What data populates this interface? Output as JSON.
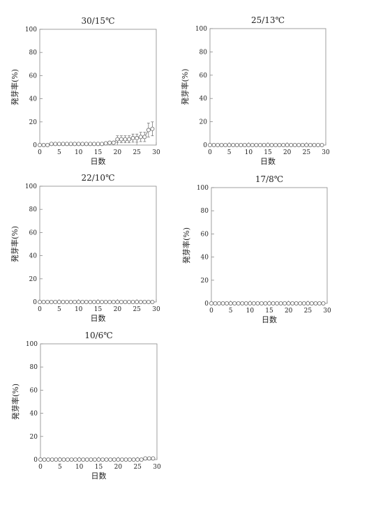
{
  "chart_data": [
    {
      "type": "scatter",
      "title": "30/15℃",
      "xlabel": "日数",
      "ylabel": "発芽率(%)",
      "xlim": [
        0,
        30
      ],
      "ylim": [
        0,
        100
      ],
      "xticks": [
        0,
        5,
        10,
        15,
        20,
        25,
        30
      ],
      "yticks": [
        0,
        20,
        40,
        60,
        80,
        100
      ],
      "x": [
        0,
        1,
        2,
        3,
        4,
        5,
        6,
        7,
        8,
        9,
        10,
        11,
        12,
        13,
        14,
        15,
        16,
        17,
        18,
        19,
        20,
        21,
        22,
        23,
        24,
        25,
        26,
        27,
        28,
        29
      ],
      "series": [
        {
          "values": [
            0,
            0,
            0,
            1,
            1,
            1,
            1,
            1,
            1,
            1,
            1,
            1,
            1,
            1,
            1,
            1,
            1,
            1.5,
            2,
            2,
            5,
            5,
            5,
            5,
            6,
            6,
            7,
            7,
            13,
            14
          ],
          "error": [
            0,
            0,
            0,
            0.5,
            0.5,
            0.5,
            0.5,
            0.5,
            0.5,
            0.5,
            0.5,
            0.5,
            0.5,
            0.5,
            0.5,
            0.5,
            0.5,
            0.5,
            0.5,
            1,
            3,
            3,
            3,
            3,
            3.5,
            3.5,
            4,
            4,
            6,
            6
          ]
        }
      ],
      "grid": false
    },
    {
      "type": "scatter",
      "title": "25/13℃",
      "xlabel": "日数",
      "ylabel": "発芽率(%)",
      "xlim": [
        0,
        30
      ],
      "ylim": [
        0,
        100
      ],
      "xticks": [
        0,
        5,
        10,
        15,
        20,
        25,
        30
      ],
      "yticks": [
        0,
        20,
        40,
        60,
        80,
        100
      ],
      "x": [
        0,
        1,
        2,
        3,
        4,
        5,
        6,
        7,
        8,
        9,
        10,
        11,
        12,
        13,
        14,
        15,
        16,
        17,
        18,
        19,
        20,
        21,
        22,
        23,
        24,
        25,
        26,
        27,
        28,
        29
      ],
      "series": [
        {
          "values": [
            0,
            0,
            0,
            0,
            0,
            0,
            0,
            0,
            0,
            0,
            0,
            0,
            0,
            0,
            0,
            0,
            0,
            0,
            0,
            0,
            0,
            0,
            0,
            0,
            0,
            0,
            0,
            0,
            0,
            0
          ],
          "error": [
            0,
            0,
            0,
            0,
            0,
            0,
            0,
            0,
            0,
            0,
            0,
            0,
            0,
            0,
            0,
            0,
            0,
            0,
            0,
            0,
            0,
            0,
            0,
            0,
            0,
            0,
            0,
            0,
            0,
            0
          ]
        }
      ],
      "grid": false
    },
    {
      "type": "scatter",
      "title": "22/10℃",
      "xlabel": "日数",
      "ylabel": "発芽率(%)",
      "xlim": [
        0,
        30
      ],
      "ylim": [
        0,
        100
      ],
      "xticks": [
        0,
        5,
        10,
        15,
        20,
        25,
        30
      ],
      "yticks": [
        0,
        20,
        40,
        60,
        80,
        100
      ],
      "x": [
        0,
        1,
        2,
        3,
        4,
        5,
        6,
        7,
        8,
        9,
        10,
        11,
        12,
        13,
        14,
        15,
        16,
        17,
        18,
        19,
        20,
        21,
        22,
        23,
        24,
        25,
        26,
        27,
        28,
        29
      ],
      "series": [
        {
          "values": [
            0,
            0,
            0,
            0,
            0,
            0,
            0,
            0,
            0,
            0,
            0,
            0,
            0,
            0,
            0,
            0,
            0,
            0,
            0,
            0,
            0,
            0,
            0,
            0,
            0,
            0,
            0,
            0,
            0,
            0
          ],
          "error": [
            0,
            0,
            0,
            0,
            0,
            0,
            0,
            0,
            0,
            0,
            0,
            0,
            0,
            0,
            0,
            0,
            0,
            0,
            0,
            0,
            0,
            0,
            0,
            0,
            0,
            0,
            0,
            0,
            0,
            0
          ]
        }
      ],
      "grid": false
    },
    {
      "type": "scatter",
      "title": "17/8℃",
      "xlabel": "日数",
      "ylabel": "発芽率(%)",
      "xlim": [
        0,
        30
      ],
      "ylim": [
        0,
        100
      ],
      "xticks": [
        0,
        5,
        10,
        15,
        20,
        25,
        30
      ],
      "yticks": [
        0,
        20,
        40,
        60,
        80,
        100
      ],
      "x": [
        0,
        1,
        2,
        3,
        4,
        5,
        6,
        7,
        8,
        9,
        10,
        11,
        12,
        13,
        14,
        15,
        16,
        17,
        18,
        19,
        20,
        21,
        22,
        23,
        24,
        25,
        26,
        27,
        28,
        29
      ],
      "series": [
        {
          "values": [
            0,
            0,
            0,
            0,
            0,
            0,
            0,
            0,
            0,
            0,
            0,
            0,
            0,
            0,
            0,
            0,
            0,
            0,
            0,
            0,
            0,
            0,
            0,
            0,
            0,
            0,
            0,
            0,
            0,
            0
          ],
          "error": [
            0,
            0,
            0,
            0,
            0,
            0,
            0,
            0,
            0,
            0,
            0,
            0,
            0,
            0,
            0,
            0,
            0,
            0,
            0,
            0,
            0,
            0,
            0,
            0,
            0,
            0,
            0,
            0,
            0,
            0
          ]
        }
      ],
      "grid": false
    },
    {
      "type": "scatter",
      "title": "10/6℃",
      "xlabel": "日数",
      "ylabel": "発芽率(%)",
      "xlim": [
        0,
        30
      ],
      "ylim": [
        0,
        100
      ],
      "xticks": [
        0,
        5,
        10,
        15,
        20,
        25,
        30
      ],
      "yticks": [
        0,
        20,
        40,
        60,
        80,
        100
      ],
      "x": [
        0,
        1,
        2,
        3,
        4,
        5,
        6,
        7,
        8,
        9,
        10,
        11,
        12,
        13,
        14,
        15,
        16,
        17,
        18,
        19,
        20,
        21,
        22,
        23,
        24,
        25,
        26,
        27,
        28,
        29
      ],
      "series": [
        {
          "values": [
            0,
            0,
            0,
            0,
            0,
            0,
            0,
            0,
            0,
            0,
            0,
            0,
            0,
            0,
            0,
            0,
            0,
            0,
            0,
            0,
            0,
            0,
            0,
            0,
            0,
            0,
            0,
            1,
            1,
            1
          ],
          "error": [
            0,
            0,
            0,
            0,
            0,
            0,
            0,
            0,
            0,
            0,
            0,
            0,
            0,
            0,
            0,
            0,
            0,
            0,
            0,
            0,
            0,
            0,
            0,
            0,
            0,
            0,
            0,
            0.5,
            0.5,
            0.5
          ]
        }
      ],
      "grid": false
    }
  ]
}
